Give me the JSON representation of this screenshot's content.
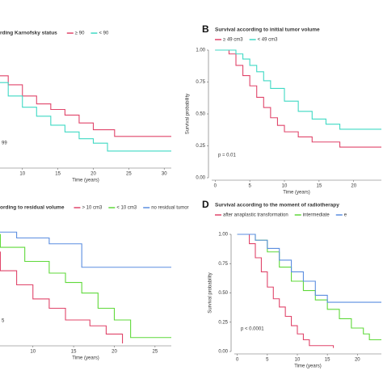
{
  "chart_data": [
    {
      "type": "line",
      "step": true,
      "title": "rding Karnofsky status",
      "xlabel": "Time (years)",
      "pvalue": "99",
      "xlim": [
        0,
        31
      ],
      "ylim": [
        0,
        1
      ],
      "xticks": [
        10,
        15,
        20,
        25,
        30
      ],
      "series": [
        {
          "name": "≥ 90",
          "color": "#e0456a",
          "x": [
            0,
            2,
            4,
            6,
            8,
            10,
            12,
            14,
            16,
            18,
            20,
            23,
            31
          ],
          "values": [
            1,
            0.97,
            0.88,
            0.8,
            0.72,
            0.62,
            0.55,
            0.5,
            0.45,
            0.38,
            0.32,
            0.26,
            0.26
          ]
        },
        {
          "name": "< 90",
          "color": "#3fd9c4",
          "x": [
            0,
            2,
            4,
            6,
            8,
            10,
            12,
            14,
            16,
            18,
            20,
            22,
            31
          ],
          "values": [
            1,
            0.95,
            0.85,
            0.74,
            0.62,
            0.52,
            0.44,
            0.36,
            0.3,
            0.24,
            0.2,
            0.13,
            0.13
          ]
        }
      ]
    },
    {
      "type": "line",
      "step": true,
      "panel_label": "B",
      "title": "Survival according to initial tumor volume",
      "xlabel": "Time (years)",
      "ylabel": "Survival probability",
      "pvalue": "p = 0.01",
      "xlim": [
        -0.5,
        24
      ],
      "ylim": [
        0,
        1
      ],
      "xticks": [
        0,
        5,
        10,
        15,
        20
      ],
      "yticks": [
        {
          "value": 0,
          "label": "0.00"
        },
        {
          "value": 0.25,
          "label": "0.25"
        },
        {
          "value": 0.5,
          "label": "0.50"
        },
        {
          "value": 0.75,
          "label": "0.75"
        },
        {
          "value": 1,
          "label": "1.00"
        }
      ],
      "series": [
        {
          "name": "≥ 49 cm3",
          "color": "#e0456a",
          "x": [
            0,
            2,
            3,
            4,
            5,
            6,
            7,
            8,
            9,
            10,
            12,
            14,
            16,
            18,
            24
          ],
          "values": [
            1,
            0.97,
            0.88,
            0.8,
            0.72,
            0.63,
            0.55,
            0.47,
            0.41,
            0.36,
            0.32,
            0.28,
            0.28,
            0.24,
            0.24
          ]
        },
        {
          "name": "< 49 cm3",
          "color": "#3fd9c4",
          "x": [
            0,
            3,
            4,
            5,
            6,
            7,
            8,
            10,
            12,
            14,
            16,
            18,
            20,
            24
          ],
          "values": [
            1,
            0.97,
            0.93,
            0.88,
            0.83,
            0.76,
            0.7,
            0.6,
            0.52,
            0.46,
            0.42,
            0.38,
            0.38,
            0.38
          ]
        }
      ]
    },
    {
      "type": "line",
      "step": true,
      "title": "ording to residual volume",
      "xlabel": "Time (years)",
      "pvalue": "5",
      "xlim": [
        0,
        27
      ],
      "ylim": [
        0,
        1
      ],
      "xticks": [
        10,
        15,
        20,
        25
      ],
      "series": [
        {
          "name": "> 10 cm3",
          "color": "#e0456a",
          "x": [
            0,
            2,
            4,
            6,
            8,
            10,
            12,
            14,
            17,
            19,
            21
          ],
          "values": [
            1,
            0.9,
            0.78,
            0.62,
            0.5,
            0.38,
            0.3,
            0.2,
            0.15,
            0.08,
            0
          ]
        },
        {
          "name": "< 10 cm3",
          "color": "#5fd93a",
          "x": [
            0,
            3,
            6,
            9,
            12,
            14,
            16,
            18,
            20,
            22,
            27
          ],
          "values": [
            1,
            0.93,
            0.82,
            0.7,
            0.6,
            0.52,
            0.43,
            0.3,
            0.2,
            0.05,
            0.05
          ]
        },
        {
          "name": "no residual tumor",
          "color": "#5b8de0",
          "x": [
            0,
            4,
            8,
            12,
            15,
            16,
            27
          ],
          "values": [
            1,
            0.95,
            0.9,
            0.85,
            0.85,
            0.65,
            0.65
          ]
        }
      ]
    },
    {
      "type": "line",
      "step": true,
      "panel_label": "D",
      "title": "Survival according to the moment of radiotherapy",
      "xlabel": "Time (years)",
      "ylabel": "Survival probability",
      "pvalue": "p < 0.0001",
      "xlim": [
        -0.5,
        24
      ],
      "ylim": [
        0,
        1
      ],
      "xticks": [
        0,
        5,
        10,
        15,
        20
      ],
      "yticks": [
        {
          "value": 0,
          "label": "0.00"
        },
        {
          "value": 0.25,
          "label": "0.25"
        },
        {
          "value": 0.5,
          "label": "0.50"
        },
        {
          "value": 0.75,
          "label": "0.75"
        },
        {
          "value": 1,
          "label": "1.00"
        }
      ],
      "series": [
        {
          "name": "after anaplastic transformation",
          "color": "#e0456a",
          "x": [
            0,
            2,
            3,
            4,
            5,
            6,
            7,
            8,
            9,
            10,
            11,
            12,
            14,
            16
          ],
          "values": [
            1,
            0.92,
            0.8,
            0.68,
            0.55,
            0.45,
            0.38,
            0.3,
            0.22,
            0.15,
            0.1,
            0.05,
            0.05,
            0.03
          ]
        },
        {
          "name": "intermediate",
          "color": "#5fd93a",
          "x": [
            0,
            3,
            5,
            7,
            9,
            11,
            13,
            15,
            17,
            19,
            21,
            22,
            24
          ],
          "values": [
            1,
            0.95,
            0.85,
            0.72,
            0.6,
            0.52,
            0.44,
            0.36,
            0.28,
            0.2,
            0.15,
            0.1,
            0.1
          ]
        },
        {
          "name": "e",
          "color": "#5b8de0",
          "x": [
            0,
            3,
            5,
            7,
            9,
            11,
            13,
            15,
            24
          ],
          "values": [
            1,
            0.95,
            0.88,
            0.78,
            0.68,
            0.6,
            0.48,
            0.42,
            0.42
          ]
        }
      ]
    }
  ]
}
